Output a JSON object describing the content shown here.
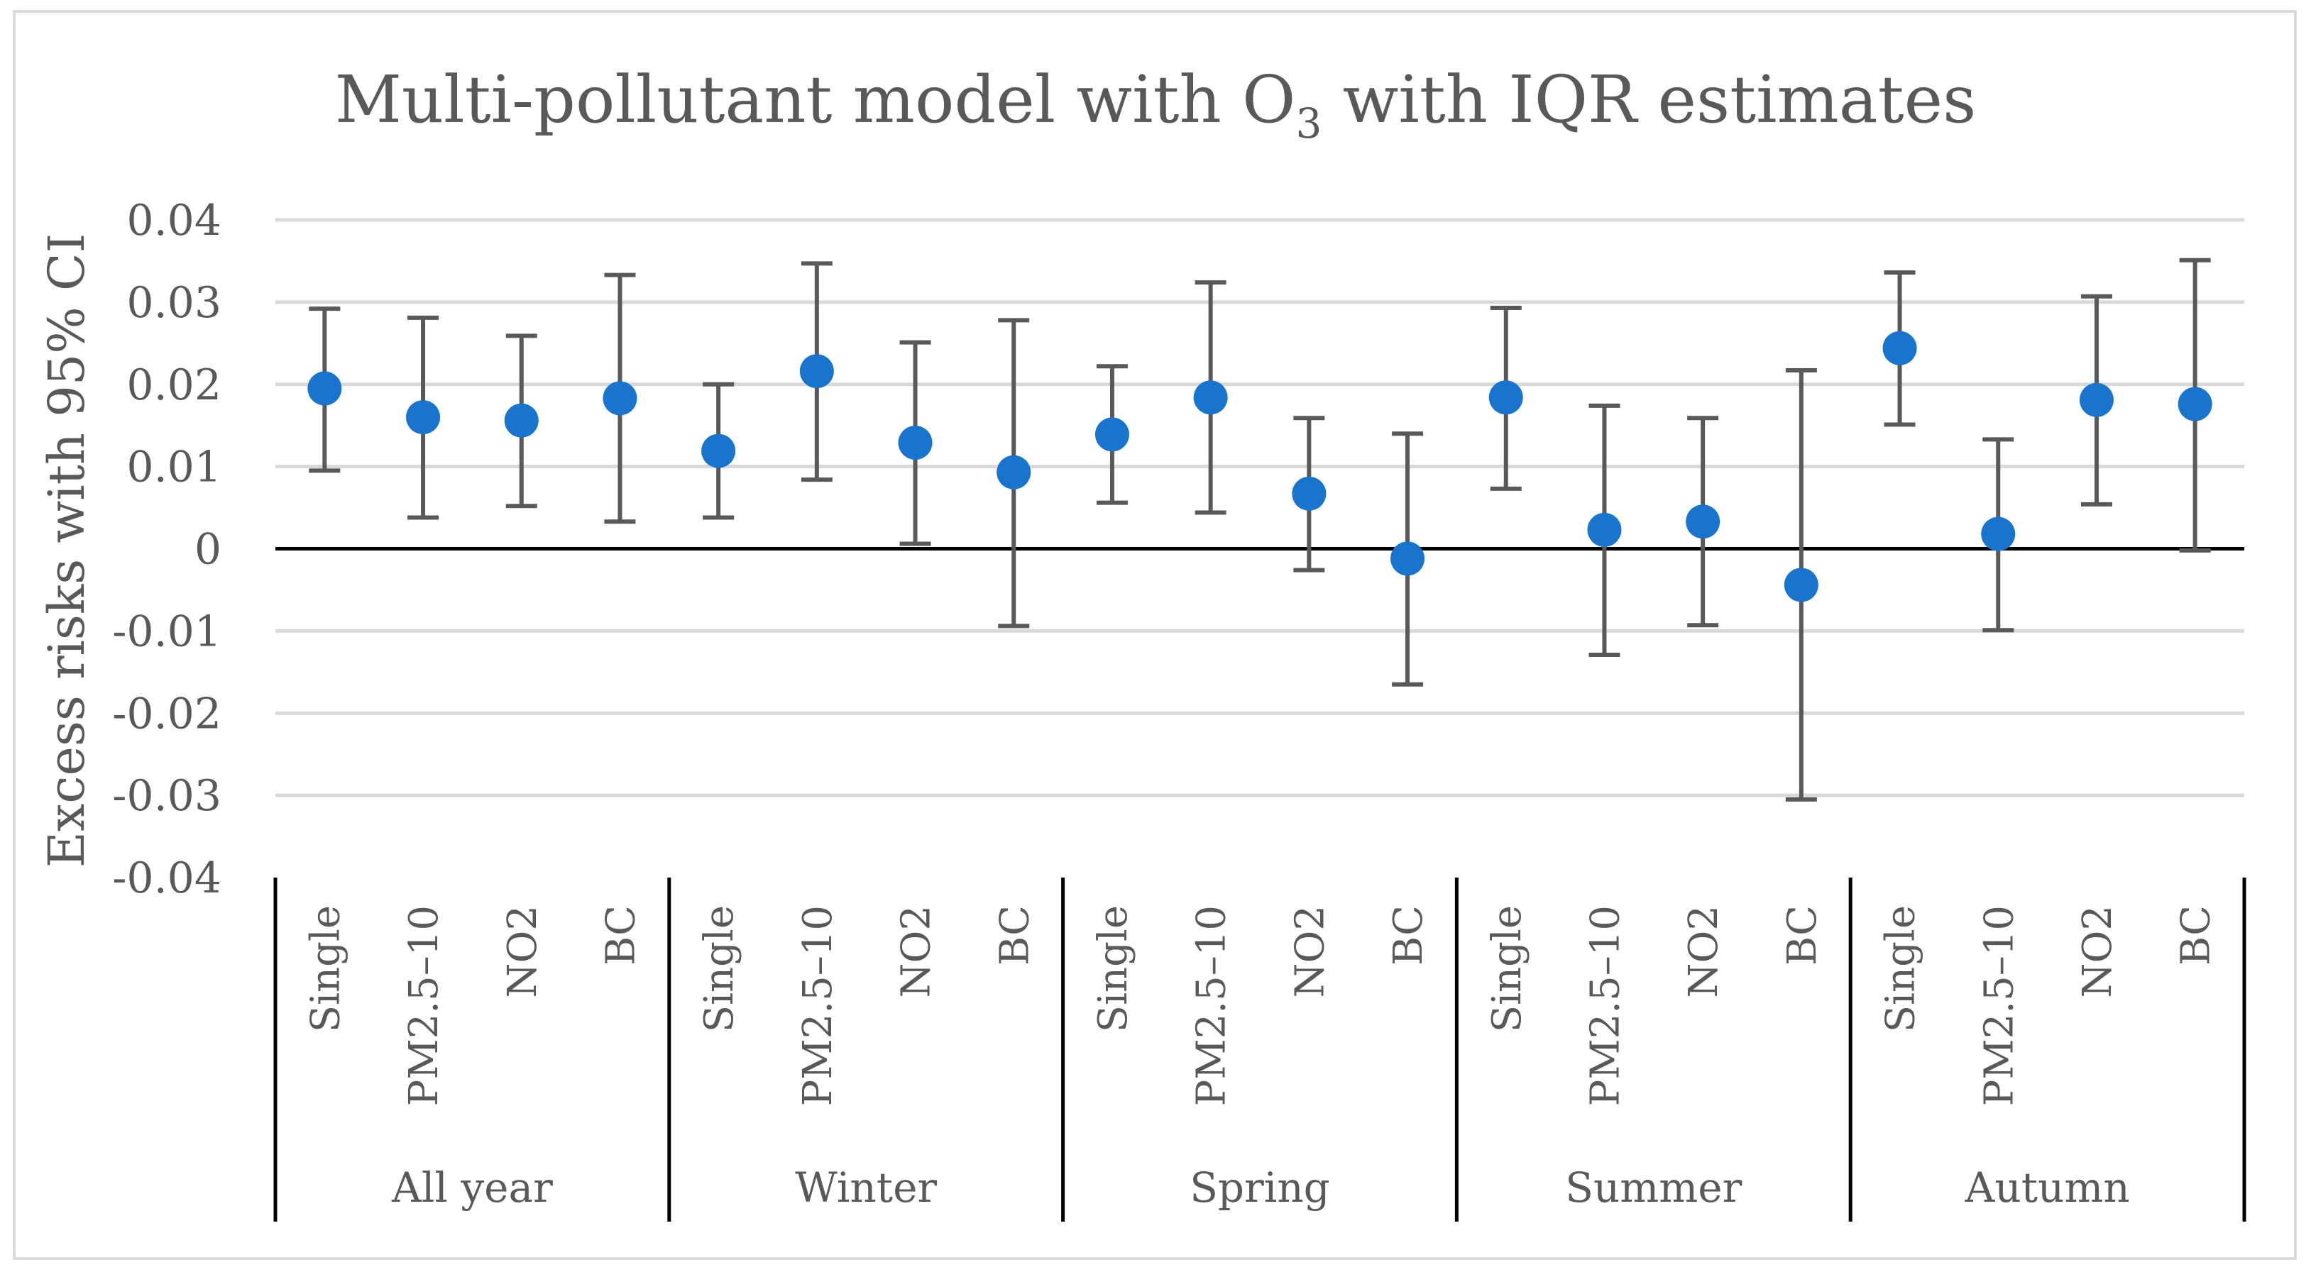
{
  "chart_data": {
    "type": "scatter",
    "title": "Multi-pollutant model with O",
    "title_subscript": "3",
    "title_suffix": " with IQR estimates",
    "ylabel": "Excess risks with 95% CI",
    "xlabel": "",
    "ylim": [
      -0.04,
      0.04
    ],
    "yticks": [
      {
        "value": 0.04,
        "label": "0.04"
      },
      {
        "value": 0.03,
        "label": "0.03"
      },
      {
        "value": 0.02,
        "label": "0.02"
      },
      {
        "value": 0.01,
        "label": "0.01"
      },
      {
        "value": 0,
        "label": "0"
      },
      {
        "value": -0.01,
        "label": "-0.01"
      },
      {
        "value": -0.02,
        "label": "-0.02"
      },
      {
        "value": -0.03,
        "label": "-0.03"
      },
      {
        "value": -0.04,
        "label": "-0.04"
      }
    ],
    "grid": true,
    "colors": {
      "point": "#1874cd",
      "errorbar": "#595959",
      "grid": "#d9d9d9"
    },
    "groups": [
      {
        "name": "All year",
        "points": [
          {
            "category": "Single",
            "estimate": 0.0195,
            "lower": 0.0095,
            "upper": 0.0292
          },
          {
            "category": "PM2.5–10",
            "estimate": 0.016,
            "lower": 0.0038,
            "upper": 0.0281
          },
          {
            "category": "NO2",
            "estimate": 0.0156,
            "lower": 0.0052,
            "upper": 0.0259
          },
          {
            "category": "BC",
            "estimate": 0.0183,
            "lower": 0.0033,
            "upper": 0.0333
          }
        ]
      },
      {
        "name": "Winter",
        "points": [
          {
            "category": "Single",
            "estimate": 0.0119,
            "lower": 0.0038,
            "upper": 0.02
          },
          {
            "category": "PM2.5–10",
            "estimate": 0.0216,
            "lower": 0.0084,
            "upper": 0.0347
          },
          {
            "category": "NO2",
            "estimate": 0.0129,
            "lower": 0.0006,
            "upper": 0.0251
          },
          {
            "category": "BC",
            "estimate": 0.0093,
            "lower": -0.0094,
            "upper": 0.0278
          }
        ]
      },
      {
        "name": "Spring",
        "points": [
          {
            "category": "Single",
            "estimate": 0.0139,
            "lower": 0.0056,
            "upper": 0.0222
          },
          {
            "category": "PM2.5–10",
            "estimate": 0.0184,
            "lower": 0.0044,
            "upper": 0.0324
          },
          {
            "category": "NO2",
            "estimate": 0.0067,
            "lower": -0.0026,
            "upper": 0.0159
          },
          {
            "category": "BC",
            "estimate": -0.0012,
            "lower": -0.0165,
            "upper": 0.014
          }
        ]
      },
      {
        "name": "Summer",
        "points": [
          {
            "category": "Single",
            "estimate": 0.0184,
            "lower": 0.0073,
            "upper": 0.0293
          },
          {
            "category": "PM2.5–10",
            "estimate": 0.0023,
            "lower": -0.0129,
            "upper": 0.0174
          },
          {
            "category": "NO2",
            "estimate": 0.0033,
            "lower": -0.0093,
            "upper": 0.0159
          },
          {
            "category": "BC",
            "estimate": -0.0044,
            "lower": -0.0305,
            "upper": 0.0217
          }
        ]
      },
      {
        "name": "Autumn",
        "points": [
          {
            "category": "Single",
            "estimate": 0.0244,
            "lower": 0.0151,
            "upper": 0.0336
          },
          {
            "category": "PM2.5–10",
            "estimate": 0.0018,
            "lower": -0.0099,
            "upper": 0.0133
          },
          {
            "category": "NO2",
            "estimate": 0.0181,
            "lower": 0.0054,
            "upper": 0.0307
          },
          {
            "category": "BC",
            "estimate": 0.0176,
            "lower": -0.0002,
            "upper": 0.0351
          }
        ]
      }
    ]
  }
}
